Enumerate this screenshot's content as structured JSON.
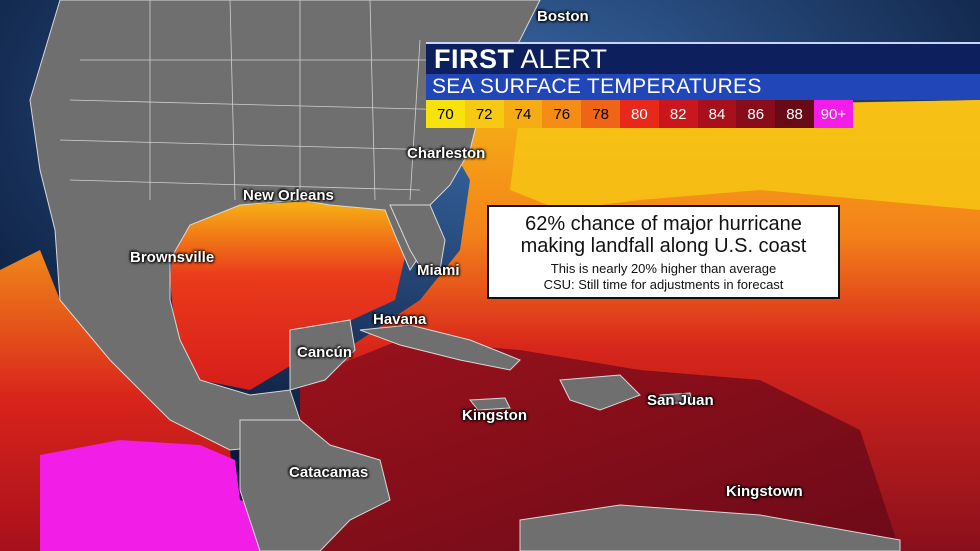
{
  "header": {
    "title_bold": "FIRST",
    "title_rest": "ALERT",
    "subtitle": "SEA SURFACE TEMPERATURES"
  },
  "legend": [
    {
      "label": "70",
      "color": "#f8e20c",
      "text_color": "#000000"
    },
    {
      "label": "72",
      "color": "#f7c912",
      "text_color": "#000000"
    },
    {
      "label": "74",
      "color": "#f6ac14",
      "text_color": "#000000"
    },
    {
      "label": "76",
      "color": "#f48c16",
      "text_color": "#000000"
    },
    {
      "label": "78",
      "color": "#ef6417",
      "text_color": "#000000"
    },
    {
      "label": "80",
      "color": "#e8281b",
      "text_color": "#ffffff"
    },
    {
      "label": "82",
      "color": "#c9171d",
      "text_color": "#ffffff"
    },
    {
      "label": "84",
      "color": "#a8101c",
      "text_color": "#ffffff"
    },
    {
      "label": "86",
      "color": "#880c1a",
      "text_color": "#ffffff"
    },
    {
      "label": "88",
      "color": "#680a16",
      "text_color": "#ffffff"
    },
    {
      "label": "90+",
      "color": "#f21de6",
      "text_color": "#ffffff"
    }
  ],
  "info_box": {
    "headline_line1": "62% chance of major hurricane",
    "headline_line2": "making landfall along U.S. coast",
    "sub_line1": "This is nearly 20% higher than average",
    "sub_line2": "CSU: Still time for adjustments in forecast"
  },
  "cities": [
    {
      "name": "Boston"
    },
    {
      "name": "Charleston"
    },
    {
      "name": "New Orleans"
    },
    {
      "name": "Brownsville"
    },
    {
      "name": "Miami"
    },
    {
      "name": "Havana"
    },
    {
      "name": "Cancún"
    },
    {
      "name": "Kingston"
    },
    {
      "name": "San Juan"
    },
    {
      "name": "Catacamas"
    },
    {
      "name": "Kingstown"
    }
  ]
}
